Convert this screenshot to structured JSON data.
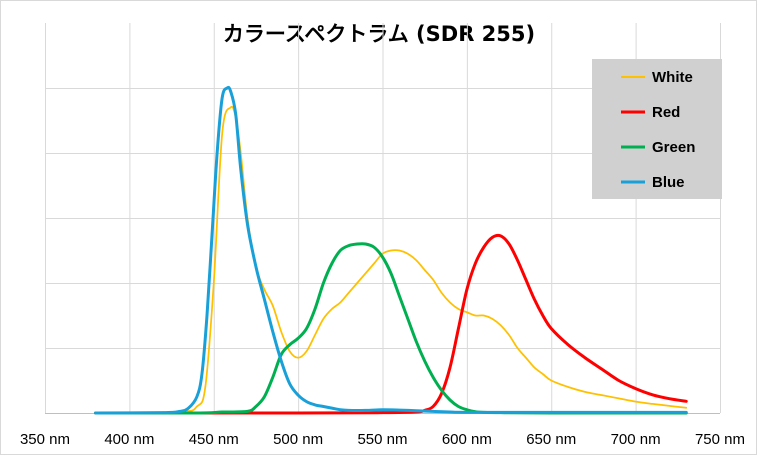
{
  "chart_data": {
    "type": "line",
    "title": "カラースペクトラム (SDR 255)",
    "xlabel": "",
    "ylabel": "",
    "x_unit": "nm",
    "xlim": [
      350,
      750
    ],
    "ylim": [
      0,
      1
    ],
    "x_ticks": [
      350,
      400,
      450,
      500,
      550,
      600,
      650,
      700,
      750
    ],
    "x_tick_labels": [
      "350 nm",
      "400 nm",
      "450 nm",
      "500 nm",
      "550 nm",
      "600 nm",
      "650 nm",
      "700 nm",
      "750 nm"
    ],
    "y_ticks": [
      0,
      0.2,
      0.4,
      0.6,
      0.8,
      1.0
    ],
    "y_tick_labels": [
      "",
      "",
      "",
      "",
      "",
      ""
    ],
    "grid": true,
    "legend_position": "top-right",
    "colors": {
      "White": "#FFC000",
      "Red": "#FF0000",
      "Green": "#00B050",
      "Blue": "#1AA0D8",
      "legend_background": "#D0D0D0",
      "grid": "#D9D9D9"
    },
    "series": [
      {
        "name": "White",
        "x": [
          380,
          430,
          440,
          445,
          450,
          455,
          460,
          463,
          466,
          470,
          475,
          480,
          485,
          490,
          495,
          500,
          505,
          510,
          515,
          520,
          525,
          530,
          535,
          540,
          545,
          550,
          555,
          560,
          565,
          570,
          575,
          580,
          585,
          590,
          595,
          600,
          605,
          610,
          615,
          620,
          625,
          630,
          635,
          640,
          645,
          650,
          660,
          670,
          680,
          690,
          700,
          710,
          720,
          730
        ],
        "y": [
          0,
          0.004,
          0.02,
          0.08,
          0.4,
          0.86,
          0.94,
          0.91,
          0.8,
          0.6,
          0.45,
          0.38,
          0.33,
          0.25,
          0.19,
          0.17,
          0.19,
          0.24,
          0.29,
          0.32,
          0.34,
          0.37,
          0.4,
          0.43,
          0.46,
          0.49,
          0.5,
          0.5,
          0.49,
          0.47,
          0.44,
          0.41,
          0.37,
          0.34,
          0.32,
          0.31,
          0.3,
          0.3,
          0.29,
          0.27,
          0.24,
          0.2,
          0.17,
          0.14,
          0.12,
          0.1,
          0.08,
          0.065,
          0.055,
          0.045,
          0.035,
          0.028,
          0.022,
          0.016
        ]
      },
      {
        "name": "Red",
        "x": [
          380,
          500,
          550,
          570,
          575,
          580,
          585,
          590,
          595,
          600,
          605,
          610,
          615,
          620,
          625,
          630,
          635,
          640,
          645,
          650,
          660,
          670,
          680,
          690,
          700,
          710,
          720,
          730
        ],
        "y": [
          0,
          0,
          0.001,
          0.003,
          0.008,
          0.02,
          0.06,
          0.14,
          0.26,
          0.38,
          0.46,
          0.51,
          0.54,
          0.545,
          0.52,
          0.47,
          0.41,
          0.35,
          0.3,
          0.26,
          0.21,
          0.17,
          0.135,
          0.1,
          0.075,
          0.056,
          0.044,
          0.036
        ]
      },
      {
        "name": "Green",
        "x": [
          380,
          440,
          455,
          470,
          475,
          480,
          485,
          490,
          495,
          500,
          505,
          510,
          515,
          520,
          525,
          530,
          535,
          540,
          545,
          550,
          555,
          560,
          565,
          570,
          575,
          580,
          585,
          590,
          595,
          600,
          605,
          610,
          620,
          650,
          730
        ],
        "y": [
          0,
          0,
          0.003,
          0.005,
          0.02,
          0.05,
          0.11,
          0.18,
          0.21,
          0.23,
          0.26,
          0.32,
          0.4,
          0.46,
          0.5,
          0.515,
          0.52,
          0.52,
          0.51,
          0.48,
          0.43,
          0.36,
          0.29,
          0.22,
          0.16,
          0.11,
          0.07,
          0.04,
          0.02,
          0.01,
          0.004,
          0.002,
          0.001,
          0,
          0
        ]
      },
      {
        "name": "Blue",
        "x": [
          380,
          420,
          430,
          435,
          440,
          443,
          446,
          449,
          452,
          455,
          458,
          460,
          463,
          466,
          470,
          475,
          480,
          485,
          490,
          495,
          500,
          505,
          510,
          515,
          520,
          525,
          530,
          540,
          550,
          560,
          570,
          580,
          590,
          600,
          650,
          730
        ],
        "y": [
          0,
          0.001,
          0.005,
          0.015,
          0.05,
          0.12,
          0.3,
          0.55,
          0.8,
          0.97,
          1.0,
          0.99,
          0.92,
          0.75,
          0.58,
          0.45,
          0.35,
          0.25,
          0.16,
          0.09,
          0.055,
          0.035,
          0.025,
          0.02,
          0.015,
          0.01,
          0.008,
          0.008,
          0.01,
          0.009,
          0.007,
          0.005,
          0.003,
          0.002,
          0.002,
          0.002
        ]
      }
    ]
  }
}
